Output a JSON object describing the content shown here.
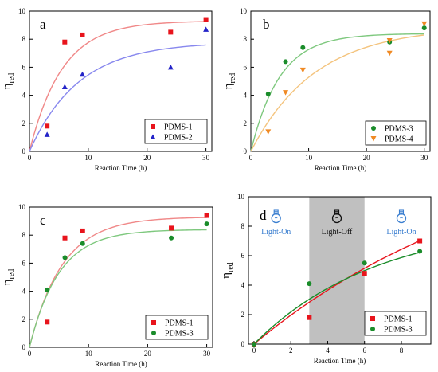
{
  "colors": {
    "red_marker": "#e8141c",
    "blue_marker": "#2424c8",
    "green_marker": "#1a8c2a",
    "orange_marker": "#f08a24",
    "red_fit": "#f08888",
    "blue_fit": "#8888ee",
    "green_fit": "#7ec87e",
    "orange_fit": "#f4c47e",
    "shade": "#c0c0c0",
    "bulb_on": "#3b7fd0",
    "bulb_off": "#111111"
  },
  "chart_data": [
    {
      "panel": "a",
      "type": "scatter",
      "xlabel": "Reaction Time (h)",
      "ylabel_main": "η",
      "ylabel_sub": "red",
      "xlim": [
        0,
        31
      ],
      "ylim": [
        0,
        10
      ],
      "xticks": [
        0,
        10,
        20,
        30
      ],
      "yticks": [
        0,
        2,
        4,
        6,
        8,
        10
      ],
      "legend_position": "bottom-right",
      "series": [
        {
          "name": "PDMS-1",
          "marker": "square",
          "color": "#e8141c",
          "fit_color": "#f08888",
          "x": [
            3,
            6,
            9,
            24,
            30
          ],
          "y": [
            1.8,
            7.8,
            8.3,
            8.5,
            9.4
          ],
          "fit": {
            "amplitude": 9.3,
            "rate": 0.18,
            "x_end": 30
          }
        },
        {
          "name": "PDMS-2",
          "marker": "triangle-up",
          "color": "#2424c8",
          "fit_color": "#8888ee",
          "x": [
            3,
            6,
            9,
            24,
            30
          ],
          "y": [
            1.2,
            4.6,
            5.5,
            6.0,
            8.7
          ],
          "fit": {
            "amplitude": 7.8,
            "rate": 0.12,
            "x_end": 30
          }
        }
      ]
    },
    {
      "panel": "b",
      "type": "scatter",
      "xlabel": "Reaction Time (h)",
      "ylabel_main": "η",
      "ylabel_sub": "red",
      "xlim": [
        0,
        31
      ],
      "ylim": [
        0,
        10
      ],
      "xticks": [
        0,
        10,
        20,
        30
      ],
      "yticks": [
        0,
        2,
        4,
        6,
        8,
        10
      ],
      "legend_position": "bottom-right",
      "series": [
        {
          "name": "PDMS-3",
          "marker": "circle",
          "color": "#1a8c2a",
          "fit_color": "#7ec87e",
          "x": [
            3,
            6,
            9,
            24,
            30
          ],
          "y": [
            4.1,
            6.4,
            7.4,
            7.8,
            8.8
          ],
          "fit": {
            "amplitude": 8.4,
            "rate": 0.2,
            "x_end": 30
          }
        },
        {
          "name": "PDMS-4",
          "marker": "triangle-down",
          "color": "#f08a24",
          "fit_color": "#f4c47e",
          "x": [
            3,
            6,
            9,
            24,
            24,
            30
          ],
          "y": [
            1.4,
            4.2,
            5.8,
            7.0,
            7.9,
            9.1
          ],
          "fit": {
            "amplitude": 8.9,
            "rate": 0.09,
            "x_end": 30
          }
        }
      ]
    },
    {
      "panel": "c",
      "type": "scatter",
      "xlabel": "Reaction Time (h)",
      "ylabel_main": "η",
      "ylabel_sub": "red",
      "xlim": [
        0,
        31
      ],
      "ylim": [
        0,
        10
      ],
      "xticks": [
        0,
        10,
        20,
        30
      ],
      "yticks": [
        0,
        2,
        4,
        6,
        8,
        10
      ],
      "legend_position": "bottom-right",
      "series": [
        {
          "name": "PDMS-1",
          "marker": "square",
          "color": "#e8141c",
          "fit_color": "#f08888",
          "x": [
            3,
            6,
            9,
            24,
            30
          ],
          "y": [
            1.8,
            7.8,
            8.3,
            8.5,
            9.4
          ],
          "fit": {
            "amplitude": 9.3,
            "rate": 0.18,
            "x_end": 30
          }
        },
        {
          "name": "PDMS-3",
          "marker": "circle",
          "color": "#1a8c2a",
          "fit_color": "#7ec87e",
          "x": [
            3,
            6,
            9,
            24,
            30
          ],
          "y": [
            4.1,
            6.4,
            7.4,
            7.8,
            8.8
          ],
          "fit": {
            "amplitude": 8.4,
            "rate": 0.2,
            "x_end": 30
          }
        }
      ]
    },
    {
      "panel": "d",
      "type": "scatter",
      "xlabel": "Reaction Time (h)",
      "ylabel_main": "η",
      "ylabel_sub": "red",
      "xlim": [
        -0.3,
        9.6
      ],
      "ylim": [
        0,
        10
      ],
      "xticks": [
        0,
        2,
        4,
        6,
        8
      ],
      "yticks": [
        0,
        2,
        4,
        6,
        8,
        10
      ],
      "legend_position": "bottom-right",
      "shaded_region": {
        "x_start": 3,
        "x_end": 6
      },
      "annotations": [
        {
          "text": "Light-On",
          "x": 1.2,
          "color": "#3b7fd0",
          "bulb": "on"
        },
        {
          "text": "Light-Off",
          "x": 4.5,
          "color": "#111111",
          "bulb": "off"
        },
        {
          "text": "Light-On",
          "x": 8.0,
          "color": "#3b7fd0",
          "bulb": "on"
        }
      ],
      "series": [
        {
          "name": "PDMS-1",
          "marker": "square",
          "color": "#e8141c",
          "fit_color": "#e8141c",
          "x": [
            0,
            3,
            6,
            9
          ],
          "y": [
            0,
            1.8,
            4.8,
            7.0
          ],
          "fit": {
            "amplitude": 15.0,
            "rate": 0.07,
            "x_end": 9
          }
        },
        {
          "name": "PDMS-3",
          "marker": "circle",
          "color": "#1a8c2a",
          "fit_color": "#1a8c2a",
          "x": [
            0,
            3,
            6,
            9
          ],
          "y": [
            0,
            4.1,
            5.5,
            6.3
          ],
          "fit": {
            "amplitude": 8.4,
            "rate": 0.15,
            "x_end": 9
          }
        }
      ]
    }
  ]
}
